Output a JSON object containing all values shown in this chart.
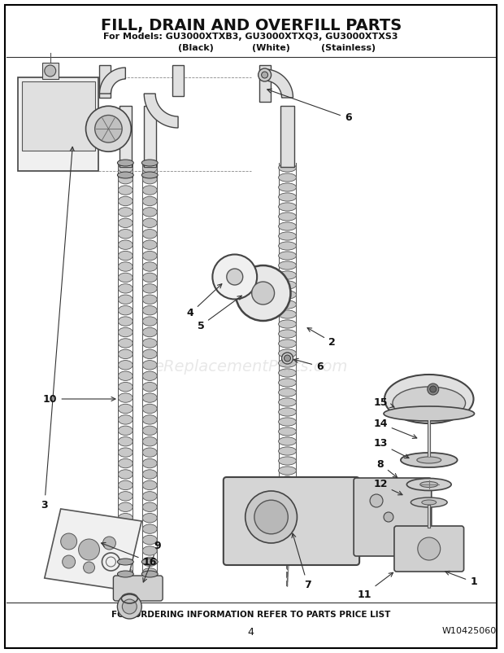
{
  "title_line1": "FILL, DRAIN AND OVERFILL PARTS",
  "title_line2": "For Models: GU3000XTXB3, GU3000XTXQ3, GU3000XTXS3",
  "title_line3_col1": "(Black)",
  "title_line3_col2": "(White)",
  "title_line3_col3": "(Stainless)",
  "footer_text": "FOR ORDERING INFORMATION REFER TO PARTS PRICE LIST",
  "page_number": "4",
  "part_number": "W10425060",
  "watermark": "eReplacementParts.com",
  "bg_color": "#ffffff",
  "border_color": "#000000",
  "fig_width": 6.2,
  "fig_height": 8.02,
  "dpi": 100,
  "line_color": "#333333",
  "hose_fill": "#c8c8c8",
  "hose_edge": "#555555",
  "component_fill": "#e0e0e0",
  "component_edge": "#333333",
  "label_fontsize": 8.5,
  "title_fontsize": 14,
  "subtitle_fontsize": 8,
  "footer_fontsize": 7.5,
  "watermark_fontsize": 14,
  "watermark_alpha": 0.22,
  "watermark_color": "#999999"
}
